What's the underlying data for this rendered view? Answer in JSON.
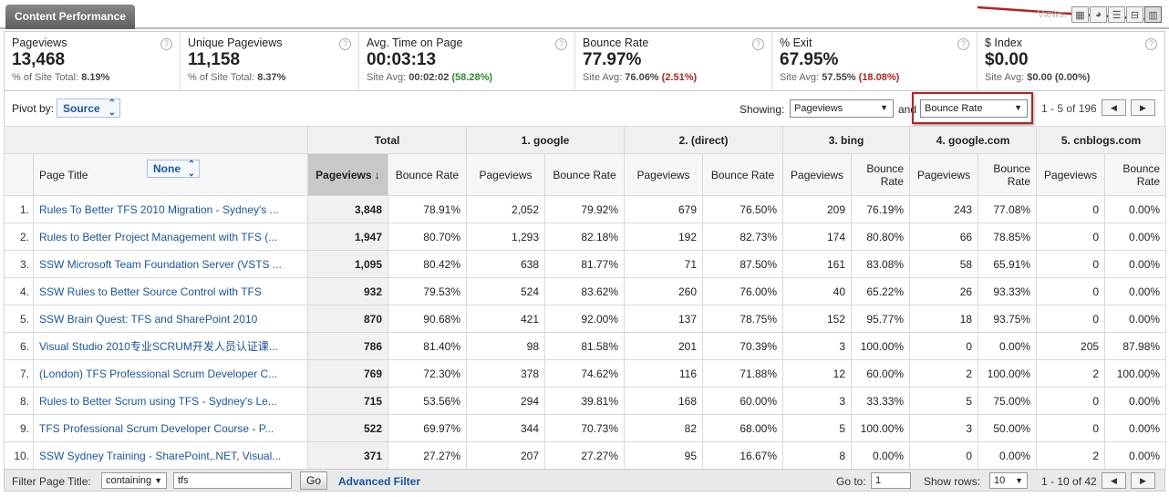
{
  "tab_title": "Content Performance",
  "views_label": "Views:",
  "view_icons": [
    "table-view-icon",
    "pie-view-icon",
    "performance-view-icon",
    "comparison-view-icon",
    "pivot-view-icon"
  ],
  "metrics": [
    {
      "label": "Pageviews",
      "value": "13,468",
      "sub_prefix": "% of Site Total:",
      "sub_value": "8.19%",
      "sub_delta": "",
      "delta_type": ""
    },
    {
      "label": "Unique Pageviews",
      "value": "11,158",
      "sub_prefix": "% of Site Total:",
      "sub_value": "8.37%",
      "sub_delta": "",
      "delta_type": ""
    },
    {
      "label": "Avg. Time on Page",
      "value": "00:03:13",
      "sub_prefix": "Site Avg:",
      "sub_value": "00:02:02",
      "sub_delta": "(58.28%)",
      "delta_type": "pos"
    },
    {
      "label": "Bounce Rate",
      "value": "77.97%",
      "sub_prefix": "Site Avg:",
      "sub_value": "76.06%",
      "sub_delta": "(2.51%)",
      "delta_type": "neg"
    },
    {
      "label": "% Exit",
      "value": "67.95%",
      "sub_prefix": "Site Avg:",
      "sub_value": "57.55%",
      "sub_delta": "(18.08%)",
      "delta_type": "neg"
    },
    {
      "label": "$ Index",
      "value": "$0.00",
      "sub_prefix": "Site Avg:",
      "sub_value": "$0.00",
      "sub_delta": "(0.00%)",
      "delta_type": ""
    }
  ],
  "controls": {
    "pivot_label": "Pivot by:",
    "pivot_value": "Source",
    "showing_label": "Showing:",
    "showing_value": "Pageviews",
    "and_label": "and",
    "second_value": "Bounce Rate",
    "range": "1 - 5 of 196"
  },
  "table": {
    "groups": [
      "Total",
      "1. google",
      "2. (direct)",
      "3. bing",
      "4. google.com",
      "5. cnblogs.com"
    ],
    "page_title_header": "Page Title",
    "secondary_dim": "None",
    "sub_headers": {
      "pageviews": "Pageviews",
      "bounce_rate": "Bounce Rate",
      "bounce_rate_wrapped": [
        "Bounce",
        "Rate"
      ]
    },
    "rows": [
      {
        "idx": "1.",
        "title": "Rules To Better TFS 2010 Migration - Sydney's ...",
        "cells": [
          "3,848",
          "78.91%",
          "2,052",
          "79.92%",
          "679",
          "76.50%",
          "209",
          "76.19%",
          "243",
          "77.08%",
          "0",
          "0.00%"
        ]
      },
      {
        "idx": "2.",
        "title": "Rules to Better Project Management with TFS (...",
        "cells": [
          "1,947",
          "80.70%",
          "1,293",
          "82.18%",
          "192",
          "82.73%",
          "174",
          "80.80%",
          "66",
          "78.85%",
          "0",
          "0.00%"
        ]
      },
      {
        "idx": "3.",
        "title": "SSW Microsoft Team Foundation Server (VSTS ...",
        "cells": [
          "1,095",
          "80.42%",
          "638",
          "81.77%",
          "71",
          "87.50%",
          "161",
          "83.08%",
          "58",
          "65.91%",
          "0",
          "0.00%"
        ]
      },
      {
        "idx": "4.",
        "title": "SSW Rules to Better Source Control with TFS",
        "cells": [
          "932",
          "79.53%",
          "524",
          "83.62%",
          "260",
          "76.00%",
          "40",
          "65.22%",
          "26",
          "93.33%",
          "0",
          "0.00%"
        ]
      },
      {
        "idx": "5.",
        "title": "SSW Brain Quest: TFS and SharePoint 2010",
        "cells": [
          "870",
          "90.68%",
          "421",
          "92.00%",
          "137",
          "78.75%",
          "152",
          "95.77%",
          "18",
          "93.75%",
          "0",
          "0.00%"
        ]
      },
      {
        "idx": "6.",
        "title": "Visual Studio 2010专业SCRUM开发人员认证课...",
        "cells": [
          "786",
          "81.40%",
          "98",
          "81.58%",
          "201",
          "70.39%",
          "3",
          "100.00%",
          "0",
          "0.00%",
          "205",
          "87.98%"
        ]
      },
      {
        "idx": "7.",
        "title": "(London) TFS Professional Scrum Developer C...",
        "cells": [
          "769",
          "72.30%",
          "378",
          "74.62%",
          "116",
          "71.88%",
          "12",
          "60.00%",
          "2",
          "100.00%",
          "2",
          "100.00%"
        ]
      },
      {
        "idx": "8.",
        "title": "Rules to Better Scrum using TFS - Sydney's Le...",
        "cells": [
          "715",
          "53.56%",
          "294",
          "39.81%",
          "168",
          "60.00%",
          "3",
          "33.33%",
          "5",
          "75.00%",
          "0",
          "0.00%"
        ]
      },
      {
        "idx": "9.",
        "title": "TFS Professional Scrum Developer Course - P...",
        "cells": [
          "522",
          "69.97%",
          "344",
          "70.73%",
          "82",
          "68.00%",
          "5",
          "100.00%",
          "3",
          "50.00%",
          "0",
          "0.00%"
        ]
      },
      {
        "idx": "10.",
        "title": "SSW Sydney Training - SharePoint,.NET, Visual...",
        "cells": [
          "371",
          "27.27%",
          "207",
          "27.27%",
          "95",
          "16.67%",
          "8",
          "0.00%",
          "0",
          "0.00%",
          "2",
          "0.00%"
        ]
      }
    ]
  },
  "footer": {
    "filter_label": "Filter Page Title:",
    "filter_mode": "containing",
    "filter_value": "tfs",
    "go_label": "Go",
    "advanced_label": "Advanced Filter",
    "goto_label": "Go to:",
    "goto_value": "1",
    "show_rows_label": "Show rows:",
    "show_rows_value": "10",
    "range": "1 - 10 of 42"
  },
  "colors": {
    "accent_link": "#1a55a5",
    "highlight_red": "#b52222",
    "positive": "#2b8a2b",
    "negative": "#b32424"
  }
}
